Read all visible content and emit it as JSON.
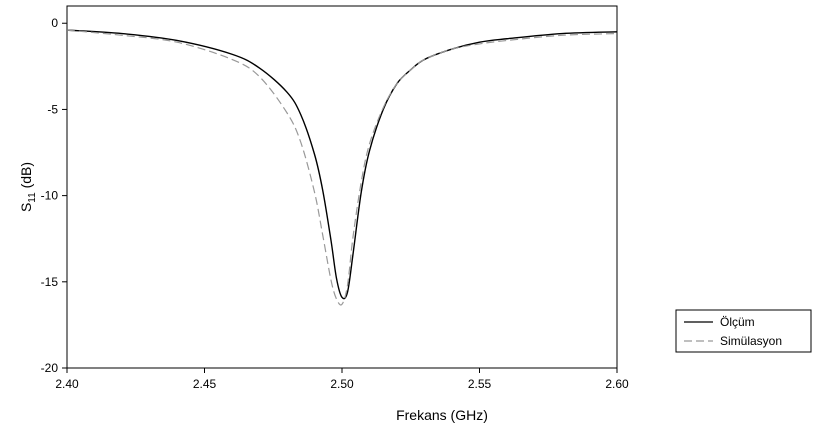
{
  "chart_data": {
    "type": "line",
    "xlabel": "Frekans (GHz)",
    "ylabel_main": "S",
    "ylabel_sub": "11",
    "ylabel_unit": " (dB)",
    "xlim": [
      2.4,
      2.6
    ],
    "ylim": [
      -20,
      1
    ],
    "xticks": [
      "2.40",
      "2.45",
      "2.50",
      "2.55",
      "2.60"
    ],
    "xtick_values": [
      2.4,
      2.45,
      2.5,
      2.55,
      2.6
    ],
    "yticks": [
      "0",
      "-5",
      "-10",
      "-15",
      "-20"
    ],
    "ytick_values": [
      0,
      -5,
      -10,
      -15,
      -20
    ],
    "grid": false,
    "legend_position": "bottom-right",
    "series": [
      {
        "name": "Ölçüm",
        "style": "solid",
        "color": "#000000",
        "x": [
          2.4,
          2.42,
          2.44,
          2.46,
          2.47,
          2.48,
          2.485,
          2.49,
          2.493,
          2.496,
          2.498,
          2.5,
          2.502,
          2.504,
          2.507,
          2.51,
          2.515,
          2.52,
          2.525,
          2.53,
          2.54,
          2.55,
          2.56,
          2.58,
          2.6
        ],
        "y": [
          -0.4,
          -0.6,
          -1.0,
          -1.8,
          -2.6,
          -4.0,
          -5.3,
          -7.6,
          -9.7,
          -12.6,
          -14.8,
          -15.9,
          -15.6,
          -13.4,
          -9.8,
          -7.4,
          -5.0,
          -3.5,
          -2.7,
          -2.1,
          -1.5,
          -1.1,
          -0.9,
          -0.6,
          -0.5
        ]
      },
      {
        "name": "Simülasyon",
        "style": "dashed",
        "color": "#999999",
        "x": [
          2.4,
          2.42,
          2.44,
          2.46,
          2.47,
          2.48,
          2.485,
          2.49,
          2.493,
          2.496,
          2.498,
          2.5,
          2.502,
          2.504,
          2.507,
          2.51,
          2.515,
          2.52,
          2.525,
          2.53,
          2.54,
          2.55,
          2.56,
          2.58,
          2.6
        ],
        "y": [
          -0.4,
          -0.7,
          -1.1,
          -2.1,
          -3.1,
          -5.2,
          -6.9,
          -9.8,
          -12.3,
          -14.9,
          -16.0,
          -16.3,
          -15.2,
          -12.4,
          -9.2,
          -7.0,
          -4.9,
          -3.5,
          -2.7,
          -2.1,
          -1.5,
          -1.2,
          -1.0,
          -0.7,
          -0.6
        ]
      }
    ]
  }
}
